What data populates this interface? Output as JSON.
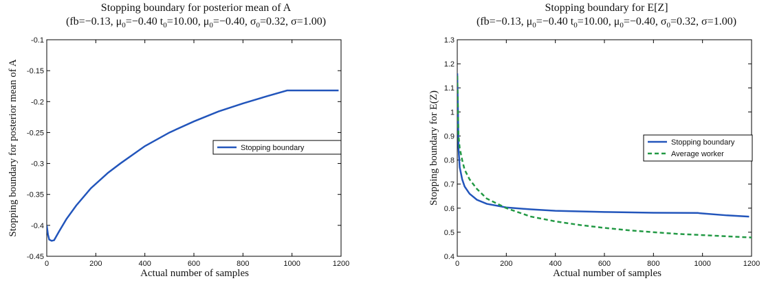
{
  "chart_data": [
    {
      "type": "line",
      "title": "Stopping boundary for posterior mean of A",
      "subtitle_parts": [
        "(fb=−0.13, μ",
        "0",
        "=−0.40 t",
        "0",
        "=10.00, μ",
        "0",
        "=−0.40, σ",
        "0",
        "=0.32, σ=1.00)"
      ],
      "xlabel": "Actual number of samples",
      "ylabel": "Stopping boundary for posterior mean of A",
      "xlim": [
        0,
        1200
      ],
      "ylim": [
        -0.45,
        -0.1
      ],
      "x_ticks": [
        0,
        200,
        400,
        600,
        800,
        1000,
        1200
      ],
      "y_ticks": [
        -0.45,
        -0.4,
        -0.35,
        -0.3,
        -0.25,
        -0.2,
        -0.15,
        -0.1
      ],
      "x_tick_labels": [
        "0",
        "200",
        "400",
        "600",
        "800",
        "1000",
        "1200"
      ],
      "y_tick_labels": [
        "-0.45",
        "-0.4",
        "-0.35",
        "-0.3",
        "-0.25",
        "-0.2",
        "-0.15",
        "-0.1"
      ],
      "legend_position": "right",
      "series": [
        {
          "name": "Stopping boundary",
          "color": "#2255bb",
          "dash": "solid",
          "x": [
            0,
            5,
            10,
            20,
            30,
            50,
            80,
            120,
            180,
            250,
            300,
            400,
            500,
            600,
            700,
            800,
            900,
            980,
            1000,
            1100,
            1190
          ],
          "y": [
            -0.4,
            -0.415,
            -0.423,
            -0.425,
            -0.424,
            -0.41,
            -0.39,
            -0.368,
            -0.34,
            -0.315,
            -0.3,
            -0.272,
            -0.25,
            -0.232,
            -0.216,
            -0.203,
            -0.191,
            -0.182,
            -0.182,
            -0.182,
            -0.182
          ]
        }
      ]
    },
    {
      "type": "line",
      "title": "Stopping boundary for E[Z]",
      "subtitle_parts": [
        "(fb=−0.13, μ",
        "0",
        "=−0.40 t",
        "0",
        "=10.00, μ",
        "0",
        "=−0.40, σ",
        "0",
        "=0.32, σ=1.00)"
      ],
      "xlabel": "Actual number of samples",
      "ylabel": "Stopping boundary for E(Z)",
      "xlim": [
        0,
        1200
      ],
      "ylim": [
        0.4,
        1.3
      ],
      "x_ticks": [
        0,
        200,
        400,
        600,
        800,
        1000,
        1200
      ],
      "y_ticks": [
        0.4,
        0.5,
        0.6,
        0.7,
        0.8,
        0.9,
        1.0,
        1.1,
        1.2,
        1.3
      ],
      "x_tick_labels": [
        "0",
        "200",
        "400",
        "600",
        "800",
        "1000",
        "1200"
      ],
      "y_tick_labels": [
        "0.4",
        "0.5",
        "0.6",
        "0.7",
        "0.8",
        "0.9",
        "1",
        "1.1",
        "1.2",
        "1.3"
      ],
      "legend_position": "right",
      "series": [
        {
          "name": "Stopping boundary",
          "color": "#2255bb",
          "dash": "solid",
          "x": [
            0,
            3,
            5,
            10,
            20,
            30,
            50,
            80,
            120,
            200,
            300,
            400,
            600,
            800,
            980,
            1000,
            1100,
            1190
          ],
          "y": [
            1.16,
            1.0,
            0.85,
            0.77,
            0.72,
            0.69,
            0.66,
            0.635,
            0.618,
            0.603,
            0.595,
            0.589,
            0.584,
            0.581,
            0.58,
            0.578,
            0.57,
            0.565
          ]
        },
        {
          "name": "Average worker",
          "color": "#229944",
          "dash": "dashed",
          "x": [
            0,
            5,
            10,
            20,
            30,
            50,
            80,
            120,
            160,
            200,
            300,
            400,
            500,
            600,
            700,
            800,
            900,
            1000,
            1100,
            1200
          ],
          "y": [
            1.15,
            0.9,
            0.85,
            0.8,
            0.76,
            0.72,
            0.68,
            0.64,
            0.62,
            0.6,
            0.565,
            0.545,
            0.53,
            0.518,
            0.508,
            0.5,
            0.493,
            0.488,
            0.483,
            0.478
          ]
        }
      ]
    }
  ]
}
